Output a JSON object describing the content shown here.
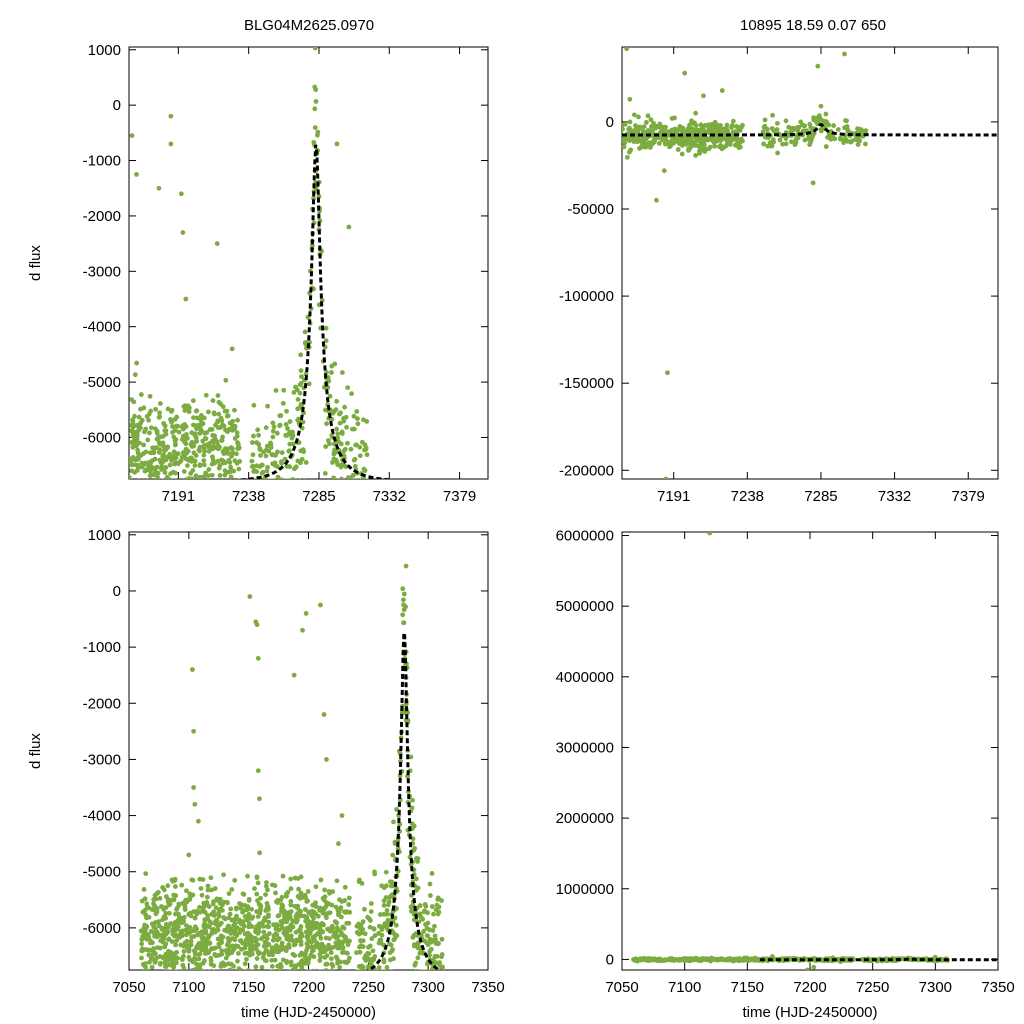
{
  "figure": {
    "title_left": "BLG04M2625.0970",
    "title_right": "10895  18.59  0.07  650",
    "colors": {
      "points": "#7cac41",
      "model": "#000000"
    }
  },
  "chart_data": [
    {
      "id": "top-left",
      "type": "scatter",
      "title": "BLG04M2625.0970",
      "xlabel": "",
      "ylabel": "d flux",
      "xlim": [
        7158,
        7398
      ],
      "ylim": [
        -6750,
        1050
      ],
      "xticks": [
        7191,
        7238,
        7285,
        7332,
        7379
      ],
      "yticks": [
        1000,
        0,
        -1000,
        -2000,
        -3000,
        -4000,
        -5000,
        -6000
      ],
      "model": {
        "name": "microlensing fit",
        "t0": 7283,
        "tE": 22,
        "peak": -700,
        "base": -6800
      },
      "series": [
        {
          "name": "baseline scatter",
          "seed": 11,
          "n": 430,
          "x_range": [
            7158,
            7232
          ],
          "y_mean": -6150,
          "y_sd": 420
        },
        {
          "name": "event scatter",
          "seed": 12,
          "n": 380,
          "x_range": [
            7240,
            7318
          ],
          "follows_model": true,
          "y_sd": 700
        },
        {
          "name": "outliers",
          "points": [
            [
              7160,
              -550
            ],
            [
              7163,
              -1250
            ],
            [
              7178,
              -1500
            ],
            [
              7186,
              -200
            ],
            [
              7186,
              -700
            ],
            [
              7193,
              -1600
            ],
            [
              7194,
              -2300
            ],
            [
              7196,
              -3500
            ],
            [
              7217,
              -2500
            ],
            [
              7227,
              -4400
            ],
            [
              7297,
              -700
            ],
            [
              7305,
              -2200
            ],
            [
              7300,
              -6500
            ]
          ]
        }
      ]
    },
    {
      "id": "top-right",
      "type": "scatter",
      "title": "10895  18.59  0.07  650",
      "xlabel": "",
      "ylabel": "",
      "xlim": [
        7158,
        7398
      ],
      "ylim": [
        -205000,
        43000
      ],
      "xticks": [
        7191,
        7238,
        7285,
        7332,
        7379
      ],
      "yticks": [
        0,
        -50000,
        -100000,
        -150000,
        -200000
      ],
      "model": {
        "name": "microlensing fit",
        "t0": 7285,
        "tE": 18,
        "peak": -1500,
        "base": -7500
      },
      "series": [
        {
          "name": "baseline scatter",
          "seed": 21,
          "n": 420,
          "x_range": [
            7158,
            7235
          ],
          "y_mean": -8000,
          "y_sd": 4000
        },
        {
          "name": "event scatter",
          "seed": 22,
          "n": 160,
          "x_range": [
            7248,
            7315
          ],
          "follows_model": true,
          "y_sd": 3500
        },
        {
          "name": "outliers",
          "points": [
            [
              7161,
              42000
            ],
            [
              7163,
              13000
            ],
            [
              7180,
              -45000
            ],
            [
              7185,
              -28000
            ],
            [
              7198,
              28000
            ],
            [
              7210,
              15000
            ],
            [
              7222,
              18000
            ],
            [
              7280,
              -35000
            ],
            [
              7283,
              32000
            ],
            [
              7285,
              9000
            ],
            [
              7300,
              39000
            ],
            [
              7205,
              5000
            ],
            [
              7187,
              -144000
            ],
            [
              7186,
              -205000
            ]
          ]
        }
      ]
    },
    {
      "id": "bottom-left",
      "type": "scatter",
      "title": "",
      "xlabel": "time (HJD-2450000)",
      "ylabel": "d flux",
      "xlim": [
        7050,
        7350
      ],
      "ylim": [
        -6750,
        1050
      ],
      "xticks": [
        7050,
        7100,
        7150,
        7200,
        7250,
        7300,
        7350
      ],
      "yticks": [
        1000,
        0,
        -1000,
        -2000,
        -3000,
        -4000,
        -5000,
        -6000
      ],
      "model": {
        "name": "microlensing fit",
        "t0": 7280,
        "tE": 22,
        "peak": -700,
        "base": -6900,
        "x_start": 7160
      },
      "series": [
        {
          "name": "baseline scatter",
          "seed": 31,
          "n": 1100,
          "x_range": [
            7060,
            7235
          ],
          "y_mean": -6100,
          "y_sd": 450
        },
        {
          "name": "event scatter",
          "seed": 32,
          "n": 480,
          "x_range": [
            7240,
            7312
          ],
          "follows_model": true,
          "y_sd": 700
        },
        {
          "name": "outliers",
          "points": [
            [
              7103,
              -1400
            ],
            [
              7104,
              -2500
            ],
            [
              7104,
              -3500
            ],
            [
              7105,
              -3800
            ],
            [
              7108,
              -4100
            ],
            [
              7100,
              -4700
            ],
            [
              7151,
              -100
            ],
            [
              7156,
              -550
            ],
            [
              7157,
              -600
            ],
            [
              7158,
              -1200
            ],
            [
              7158,
              -3200
            ],
            [
              7159,
              -3700
            ],
            [
              7188,
              -1500
            ],
            [
              7195,
              -700
            ],
            [
              7198,
              -400
            ],
            [
              7210,
              -250
            ],
            [
              7213,
              -2200
            ],
            [
              7215,
              -3000
            ],
            [
              7225,
              -4500
            ],
            [
              7228,
              -4000
            ]
          ]
        }
      ]
    },
    {
      "id": "bottom-right",
      "type": "scatter",
      "title": "",
      "xlabel": "time (HJD-2450000)",
      "ylabel": "",
      "xlim": [
        7050,
        7350
      ],
      "ylim": [
        -150000,
        6050000
      ],
      "xticks": [
        7050,
        7100,
        7150,
        7200,
        7250,
        7300,
        7350
      ],
      "yticks": [
        6000000,
        5000000,
        4000000,
        3000000,
        2000000,
        1000000,
        0
      ],
      "model": {
        "name": "microlensing fit",
        "t0": 7280,
        "tE": 22,
        "peak": 5000,
        "base": -5000,
        "x_start": 7160
      },
      "series": [
        {
          "name": "baseline scatter",
          "seed": 41,
          "n": 420,
          "x_range": [
            7058,
            7235
          ],
          "y_mean": -3000,
          "y_sd": 9000
        },
        {
          "name": "event scatter",
          "seed": 42,
          "n": 160,
          "x_range": [
            7240,
            7310
          ],
          "follows_model": true,
          "y_sd": 8000
        },
        {
          "name": "outliers",
          "points": [
            [
              7120,
              6050000
            ],
            [
              7198,
              -150000
            ],
            [
              7203,
              -110000
            ],
            [
              7170,
              40000
            ],
            [
              7300,
              30000
            ]
          ]
        }
      ]
    }
  ]
}
